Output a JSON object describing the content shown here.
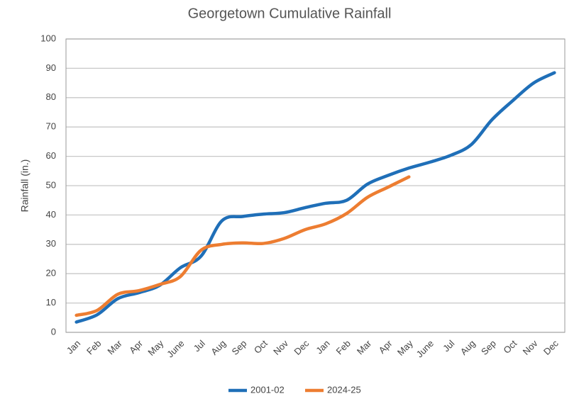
{
  "chart_data": {
    "type": "line",
    "title": "Georgetown Cumulative Rainfall",
    "y_label": "Rainfall (in.)",
    "categories": [
      "Jan",
      "Feb",
      "Mar",
      "Apr",
      "May",
      "June",
      "Jul",
      "Aug",
      "Sep",
      "Oct",
      "Nov",
      "Dec",
      "Jan",
      "Feb",
      "Mar",
      "Apr",
      "May",
      "June",
      "Jul",
      "Aug",
      "Sep",
      "Oct",
      "Nov",
      "Dec"
    ],
    "series": [
      {
        "name": "2001-02",
        "color": "#1f6fb8",
        "values": [
          3.5,
          6,
          11.5,
          13.5,
          16,
          22,
          26,
          38,
          39.5,
          40.3,
          40.8,
          42.5,
          44,
          45,
          50.5,
          53.5,
          56,
          58,
          60.3,
          64,
          72.5,
          79,
          85,
          88.5
        ]
      },
      {
        "name": "2024-25",
        "color": "#ed7d31",
        "values": [
          5.8,
          7.5,
          13,
          14.2,
          16.3,
          19,
          28,
          30,
          30.5,
          30.3,
          32,
          35,
          37,
          40.5,
          46,
          49.5,
          53,
          null,
          null,
          null,
          null,
          null,
          null,
          null
        ]
      }
    ],
    "ylim": [
      0,
      100
    ],
    "yticks": [
      0,
      10,
      20,
      30,
      40,
      50,
      60,
      70,
      80,
      90,
      100
    ],
    "grid": true,
    "legend": "bottom"
  }
}
